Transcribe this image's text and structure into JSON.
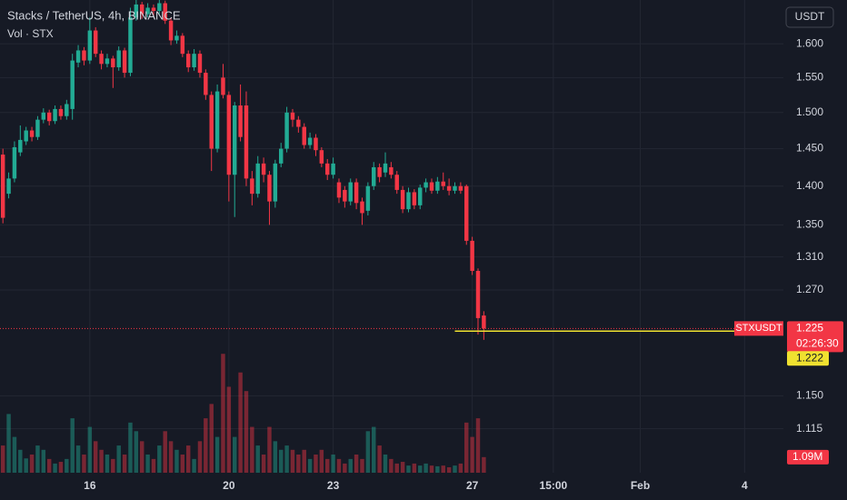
{
  "chart_data": {
    "type": "candlestick",
    "title": "Stacks / TetherUS, 4h, BINANCE",
    "volume_title": "Vol · STX",
    "symbol": "STXUSDT",
    "currency": "USDT",
    "countdown": "02:26:30",
    "log_scale": true,
    "grid": true,
    "up_color": "#22ab94",
    "down_color": "#f23645",
    "ylim": [
      1.07,
      1.667
    ],
    "yticks": [
      {
        "value": 1.6,
        "label": "1.600"
      },
      {
        "value": 1.55,
        "label": "1.550"
      },
      {
        "value": 1.5,
        "label": "1.500"
      },
      {
        "value": 1.45,
        "label": "1.450"
      },
      {
        "value": 1.4,
        "label": "1.400"
      },
      {
        "value": 1.35,
        "label": "1.350"
      },
      {
        "value": 1.31,
        "label": "1.310"
      },
      {
        "value": 1.27,
        "label": "1.270"
      },
      {
        "value": 1.15,
        "label": "1.150"
      },
      1.115
    ],
    "xlim": [
      -0.5,
      134.7
    ],
    "xticks": [
      {
        "value": 15,
        "label": "16"
      },
      {
        "value": 39,
        "label": "20"
      },
      {
        "value": 57,
        "label": "23"
      },
      {
        "value": 81,
        "label": "27"
      },
      {
        "value": 95,
        "label": "15:00"
      },
      {
        "value": 110,
        "label": "Feb"
      },
      {
        "value": 128,
        "label": "4"
      }
    ],
    "volume_ylim": [
      0,
      33000000
    ],
    "volume_last_label": "1.09M",
    "hline": {
      "value": 1.222,
      "from": 78,
      "color": "#f0e130"
    },
    "open": [
      1.442,
      1.39,
      1.41,
      1.445,
      1.46,
      1.475,
      1.466,
      1.49,
      1.5,
      1.488,
      1.505,
      1.495,
      1.505,
      1.572,
      1.59,
      1.575,
      1.62,
      1.585,
      1.57,
      1.578,
      1.565,
      1.59,
      1.557,
      1.64,
      1.66,
      1.645,
      1.655,
      1.65,
      1.662,
      1.635,
      1.605,
      1.612,
      1.585,
      1.565,
      1.585,
      1.557,
      1.525,
      1.45,
      1.55,
      1.525,
      1.415,
      1.51,
      1.51,
      1.41,
      1.39,
      1.43,
      1.415,
      1.38,
      1.43,
      1.45,
      1.5,
      1.49,
      1.48,
      1.455,
      1.465,
      1.448,
      1.43,
      1.415,
      1.405,
      1.395,
      1.38,
      1.405,
      1.38,
      1.368,
      1.4,
      1.425,
      1.418,
      1.425,
      1.415,
      1.395,
      1.37,
      1.392,
      1.375,
      1.398,
      1.405,
      1.394,
      1.406,
      1.4,
      1.394,
      1.4,
      1.4,
      1.33,
      1.293,
      1.24
    ],
    "high": [
      1.45,
      1.418,
      1.46,
      1.482,
      1.48,
      1.48,
      1.495,
      1.506,
      1.504,
      1.51,
      1.51,
      1.518,
      1.585,
      1.598,
      1.595,
      1.64,
      1.625,
      1.59,
      1.585,
      1.582,
      1.596,
      1.594,
      1.655,
      1.667,
      1.664,
      1.662,
      1.66,
      1.667,
      1.666,
      1.64,
      1.62,
      1.616,
      1.59,
      1.592,
      1.59,
      1.562,
      1.53,
      1.54,
      1.57,
      1.53,
      1.515,
      1.54,
      1.53,
      1.42,
      1.44,
      1.438,
      1.42,
      1.435,
      1.458,
      1.508,
      1.505,
      1.495,
      1.485,
      1.472,
      1.47,
      1.452,
      1.436,
      1.438,
      1.41,
      1.4,
      1.41,
      1.41,
      1.385,
      1.405,
      1.432,
      1.43,
      1.445,
      1.432,
      1.42,
      1.4,
      1.398,
      1.396,
      1.402,
      1.41,
      1.41,
      1.412,
      1.418,
      1.41,
      1.405,
      1.405,
      1.402,
      1.335,
      1.296,
      1.245
    ],
    "low": [
      1.352,
      1.384,
      1.405,
      1.44,
      1.455,
      1.46,
      1.462,
      1.485,
      1.482,
      1.484,
      1.49,
      1.49,
      1.49,
      1.565,
      1.568,
      1.57,
      1.58,
      1.562,
      1.565,
      1.535,
      1.56,
      1.55,
      1.552,
      1.635,
      1.638,
      1.64,
      1.642,
      1.645,
      1.63,
      1.598,
      1.6,
      1.58,
      1.558,
      1.56,
      1.55,
      1.518,
      1.42,
      1.445,
      1.52,
      1.38,
      1.36,
      1.46,
      1.4,
      1.375,
      1.385,
      1.405,
      1.35,
      1.372,
      1.425,
      1.445,
      1.48,
      1.472,
      1.45,
      1.45,
      1.44,
      1.425,
      1.408,
      1.41,
      1.378,
      1.372,
      1.375,
      1.37,
      1.35,
      1.362,
      1.395,
      1.405,
      1.412,
      1.41,
      1.39,
      1.365,
      1.366,
      1.37,
      1.37,
      1.392,
      1.39,
      1.39,
      1.395,
      1.388,
      1.39,
      1.39,
      1.325,
      1.288,
      1.218,
      1.212
    ],
    "close": [
      1.359,
      1.41,
      1.452,
      1.462,
      1.475,
      1.466,
      1.49,
      1.5,
      1.488,
      1.505,
      1.495,
      1.512,
      1.575,
      1.59,
      1.575,
      1.62,
      1.585,
      1.57,
      1.578,
      1.565,
      1.59,
      1.557,
      1.64,
      1.66,
      1.645,
      1.655,
      1.65,
      1.662,
      1.635,
      1.605,
      1.612,
      1.585,
      1.565,
      1.585,
      1.557,
      1.525,
      1.45,
      1.53,
      1.525,
      1.415,
      1.51,
      1.466,
      1.41,
      1.39,
      1.43,
      1.415,
      1.38,
      1.43,
      1.45,
      1.5,
      1.49,
      1.48,
      1.455,
      1.465,
      1.448,
      1.43,
      1.415,
      1.43,
      1.385,
      1.38,
      1.405,
      1.378,
      1.365,
      1.4,
      1.425,
      1.412,
      1.43,
      1.415,
      1.395,
      1.37,
      1.392,
      1.375,
      1.398,
      1.405,
      1.394,
      1.406,
      1.4,
      1.394,
      1.4,
      1.394,
      1.33,
      1.293,
      1.237,
      1.225
    ],
    "volume": [
      1900000,
      4100000,
      2500000,
      1600000,
      1000000,
      1270000,
      1900000,
      1600000,
      960000,
      640000,
      760000,
      960000,
      3800000,
      1900000,
      1270000,
      3200000,
      2200000,
      1600000,
      1270000,
      960000,
      1900000,
      1270000,
      3500000,
      2900000,
      2200000,
      1270000,
      960000,
      1900000,
      2900000,
      2200000,
      1600000,
      1270000,
      1900000,
      960000,
      2200000,
      3800000,
      4800000,
      2500000,
      8300000,
      6000000,
      2500000,
      7000000,
      5700000,
      3200000,
      1900000,
      1270000,
      3200000,
      2200000,
      1600000,
      1900000,
      1600000,
      1270000,
      1600000,
      960000,
      1270000,
      1600000,
      960000,
      1270000,
      960000,
      640000,
      960000,
      1270000,
      960000,
      2900000,
      3200000,
      1900000,
      1270000,
      960000,
      640000,
      760000,
      500000,
      640000,
      500000,
      640000,
      500000,
      450000,
      500000,
      380000,
      500000,
      640000,
      3500000,
      2500000,
      3800000,
      1090000
    ]
  }
}
